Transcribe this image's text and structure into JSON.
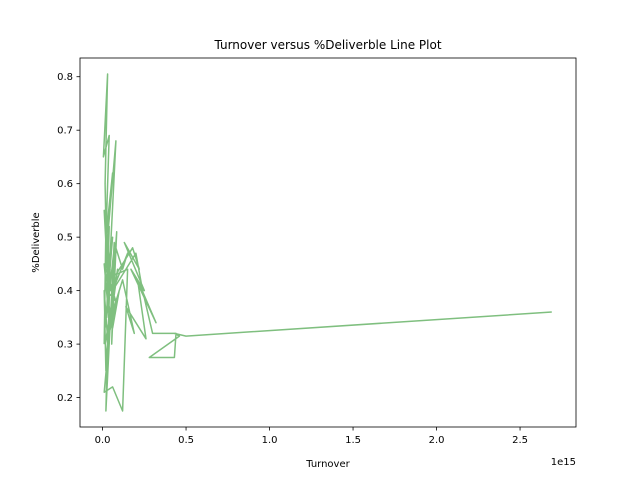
{
  "chart_data": {
    "type": "line",
    "title": "Turnover versus %Deliverble Line Plot",
    "xlabel": "Turnover",
    "ylabel": "%Deliverble",
    "x_offset_label": "1e15",
    "xlim": [
      -0.135,
      2.835
    ],
    "ylim": [
      0.145,
      0.835
    ],
    "xticks": [
      0.0,
      0.5,
      1.0,
      1.5,
      2.0,
      2.5
    ],
    "xtick_labels": [
      "0.0",
      "0.5",
      "1.0",
      "1.5",
      "2.0",
      "2.5"
    ],
    "yticks": [
      0.2,
      0.3,
      0.4,
      0.5,
      0.6,
      0.7,
      0.8
    ],
    "ytick_labels": [
      "0.2",
      "0.3",
      "0.4",
      "0.5",
      "0.6",
      "0.7",
      "0.8"
    ],
    "grid": false,
    "legend": "none",
    "series": [
      {
        "color": "#7fbf7f",
        "x": [
          0.01,
          0.02,
          0.015,
          0.03,
          0.005,
          0.04,
          0.02,
          0.06,
          0.025,
          0.08,
          0.035,
          0.01,
          0.05,
          0.015,
          0.04,
          0.025,
          0.07,
          0.055,
          0.085,
          0.03,
          0.045,
          0.015,
          0.06,
          0.02,
          0.035,
          0.01,
          0.08,
          0.025,
          0.06,
          0.1,
          0.04,
          0.09,
          0.015,
          0.05,
          0.02,
          0.03,
          0.01,
          0.06,
          0.12,
          0.15,
          0.08,
          0.18,
          0.22,
          0.13,
          0.25,
          0.17,
          0.32,
          0.21,
          0.26,
          0.14,
          0.19,
          0.12,
          0.05,
          0.02,
          0.01,
          0.03,
          0.02,
          0.07,
          0.1,
          0.12,
          0.15,
          0.06,
          0.2,
          0.24,
          0.3,
          0.44,
          0.43,
          0.28,
          0.46,
          0.43,
          0.5,
          2.69
        ],
        "y": [
          0.3,
          0.52,
          0.6,
          0.805,
          0.65,
          0.69,
          0.5,
          0.62,
          0.48,
          0.68,
          0.4,
          0.55,
          0.4,
          0.43,
          0.52,
          0.35,
          0.48,
          0.3,
          0.51,
          0.28,
          0.44,
          0.33,
          0.5,
          0.42,
          0.36,
          0.45,
          0.38,
          0.4,
          0.33,
          0.4,
          0.32,
          0.44,
          0.3,
          0.35,
          0.275,
          0.28,
          0.21,
          0.22,
          0.175,
          0.44,
          0.43,
          0.48,
          0.44,
          0.49,
          0.4,
          0.44,
          0.34,
          0.42,
          0.31,
          0.37,
          0.32,
          0.42,
          0.35,
          0.25,
          0.4,
          0.31,
          0.175,
          0.49,
          0.46,
          0.44,
          0.47,
          0.4,
          0.47,
          0.4,
          0.32,
          0.32,
          0.275,
          0.275,
          0.315,
          0.32,
          0.315,
          0.36
        ]
      }
    ]
  }
}
